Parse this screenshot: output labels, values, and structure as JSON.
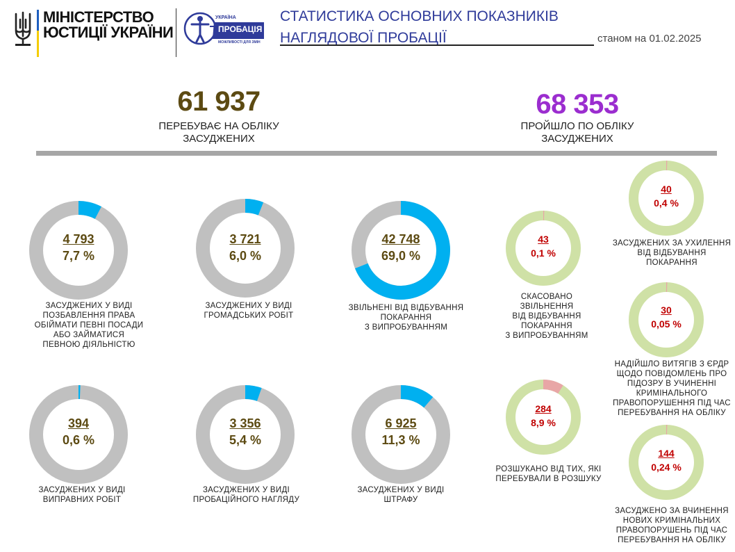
{
  "header": {
    "ministry_line1": "МІНІСТЕРСТВО",
    "ministry_line2": "ЮСТИЦІЇ УКРАЇНИ",
    "logo_word1": "УКРАЇНА",
    "logo_word2": "ПРОБАЦІЯ",
    "logo_tagline": "МОЖЛИВОСТІ ДЛЯ ЗМІН",
    "title_line1": "СТАТИСТИКА ОСНОВНИХ ПОКАЗНИКІВ",
    "title_line2": "НАГЛЯДОВОЇ ПРОБАЦІЇ",
    "as_of": "станом на 01.02.2025"
  },
  "summary": {
    "left_value": "61 937",
    "left_label_line1": "ПЕРЕБУВАЄ НА ОБЛІКУ",
    "left_label_line2": "ЗАСУДЖЕНИХ",
    "right_value": "68 353",
    "right_label_line1": "ПРОЙШЛО ПО ОБЛІКУ",
    "right_label_line2": "ЗАСУДЖЕНИХ"
  },
  "colors": {
    "olive": "#5c4a12",
    "purple": "#9b2dcf",
    "blue_fill": "#00b0f0",
    "gray_track": "#c0c0c0",
    "green_track": "#cfe1a6",
    "red_fill": "#e8a6a6",
    "red_text": "#c00000"
  },
  "chart_data": [
    {
      "type": "pie",
      "group": "left",
      "items": [
        {
          "value": "4 793",
          "percent_label": "7,7 %",
          "fraction": 0.077,
          "caption": [
            "ЗАСУДЖЕНИХ У ВИДІ",
            "ПОЗБАВЛЕННЯ ПРАВА",
            "ОБІЙМАТИ ПЕВНІ ПОСАДИ",
            "АБО ЗАЙМАТИСЯ",
            "ПЕВНОЮ ДІЯЛЬНІСТЮ"
          ]
        },
        {
          "value": "3 721",
          "percent_label": "6,0 %",
          "fraction": 0.06,
          "caption": [
            "ЗАСУДЖЕНИХ У ВИДІ",
            "ГРОМАДСЬКИХ РОБІТ"
          ]
        },
        {
          "value": "42 748",
          "percent_label": "69,0 %",
          "fraction": 0.69,
          "caption": [
            "ЗВІЛЬНЕНІ ВІД ВІДБУВАННЯ",
            "ПОКАРАННЯ",
            "З ВИПРОБУВАННЯМ"
          ]
        },
        {
          "value": "394",
          "percent_label": "0,6 %",
          "fraction": 0.006,
          "caption": [
            "ЗАСУДЖЕНИХ У ВИДІ",
            "ВИПРАВНИХ РОБІТ"
          ]
        },
        {
          "value": "3 356",
          "percent_label": "5,4 %",
          "fraction": 0.054,
          "caption": [
            "ЗАСУДЖЕНИХ У ВИДІ",
            "ПРОБАЦІЙНОГО НАГЛЯДУ"
          ]
        },
        {
          "value": "6 925",
          "percent_label": "11,3 %",
          "fraction": 0.113,
          "caption": [
            "ЗАСУДЖЕНИХ У ВИДІ",
            "ШТРАФУ"
          ]
        }
      ]
    },
    {
      "type": "pie",
      "group": "right",
      "items": [
        {
          "value": "43",
          "percent_label": "0,1 %",
          "fraction": 0.001,
          "caption": [
            "СКАСОВАНО",
            "ЗВІЛЬНЕННЯ",
            "ВІД ВІДБУВАННЯ",
            "ПОКАРАННЯ",
            "З ВИПРОБУВАННЯМ"
          ]
        },
        {
          "value": "284",
          "percent_label": "8,9 %",
          "fraction": 0.089,
          "caption": [
            "РОЗШУКАНО ВІД ТИХ, ЯКІ",
            "ПЕРЕБУВАЛИ В РОЗШУКУ"
          ]
        },
        {
          "value": "40",
          "percent_label": "0,4 %",
          "fraction": 0.004,
          "caption": [
            "ЗАСУДЖЕНИХ ЗА УХИЛЕННЯ",
            "ВІД ВІДБУВАННЯ",
            "ПОКАРАННЯ"
          ]
        },
        {
          "value": "30",
          "percent_label": "0,05 %",
          "fraction": 0.0005,
          "caption": [
            "НАДІЙШЛО ВИТЯГІВ З ЄРДР",
            "ЩОДО ПОВІДОМЛЕНЬ ПРО",
            "ПІДОЗРУ В УЧИНЕННІ",
            "КРИМІНАЛЬНОГО",
            "ПРАВОПОРУШЕННЯ ПІД ЧАС",
            "ПЕРЕБУВАННЯ НА ОБЛІКУ"
          ]
        },
        {
          "value": "144",
          "percent_label": "0,24 %",
          "fraction": 0.0024,
          "caption": [
            "ЗАСУДЖЕНО ЗА ВЧИНЕННЯ",
            "НОВИХ КРИМІНАЛЬНИХ",
            "ПРАВОПОРУШЕНЬ ПІД ЧАС",
            "ПЕРЕБУВАННЯ НА ОБЛІКУ"
          ]
        }
      ]
    }
  ]
}
